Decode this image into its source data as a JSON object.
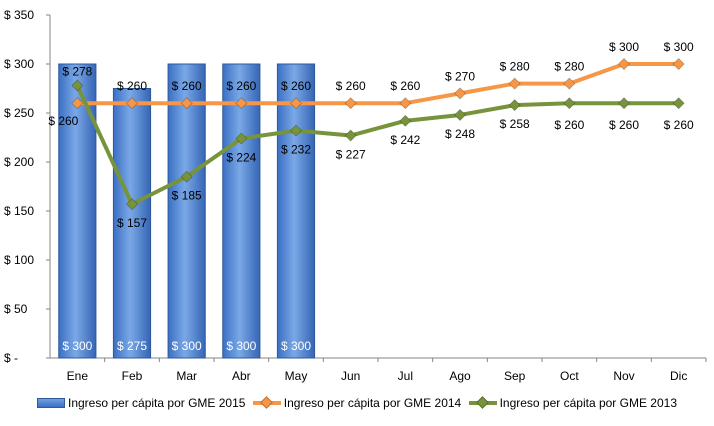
{
  "chart_data": {
    "type": "bar+line",
    "categories": [
      "Ene",
      "Feb",
      "Mar",
      "Abr",
      "May",
      "Jun",
      "Jul",
      "Ago",
      "Sep",
      "Oct",
      "Nov",
      "Dic"
    ],
    "ylim": [
      0,
      350
    ],
    "yticks": [
      0,
      50,
      100,
      150,
      200,
      250,
      300,
      350
    ],
    "ytick_labels": [
      "$ -",
      "$ 50",
      "$ 100",
      "$ 150",
      "$ 200",
      "$ 250",
      "$ 300",
      "$ 350"
    ],
    "legend_position": "bottom",
    "grid": false,
    "series": [
      {
        "name": "Ingreso per cápita por GME 2015",
        "type": "bar",
        "color": "#4a7fcf",
        "values": [
          300,
          275,
          300,
          300,
          300,
          null,
          null,
          null,
          null,
          null,
          null,
          null
        ],
        "labels": [
          "$ 300",
          "$ 275",
          "$ 300",
          "$ 300",
          "$ 300",
          null,
          null,
          null,
          null,
          null,
          null,
          null
        ]
      },
      {
        "name": "Ingreso per cápita por GME 2014",
        "type": "line",
        "color": "#f79646",
        "values": [
          260,
          260,
          260,
          260,
          260,
          260,
          260,
          270,
          280,
          280,
          300,
          300
        ],
        "labels": [
          "$ 260",
          "$ 260",
          "$ 260",
          "$ 260",
          "$ 260",
          "$ 260",
          "$ 260",
          "$ 270",
          "$ 280",
          "$ 280",
          "$ 300",
          "$ 300"
        ]
      },
      {
        "name": "Ingreso per cápita por GME 2013",
        "type": "line",
        "color": "#77933c",
        "values": [
          278,
          157,
          185,
          224,
          232,
          227,
          242,
          248,
          258,
          260,
          260,
          260
        ],
        "labels": [
          "$ 278",
          "$ 157",
          "$ 185",
          "$ 224",
          "$ 232",
          "$ 227",
          "$ 242",
          "$ 248",
          "$ 258",
          "$ 260",
          "$ 260",
          "$ 260"
        ]
      }
    ]
  }
}
